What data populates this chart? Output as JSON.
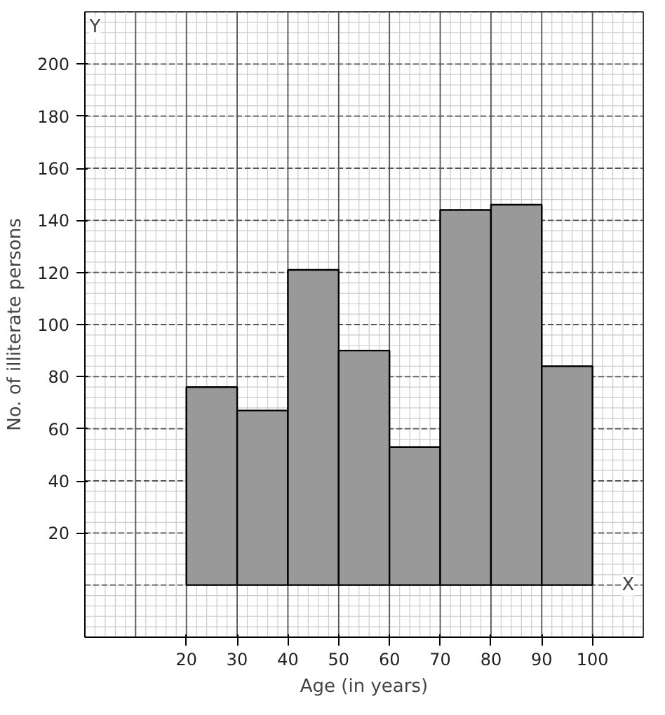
{
  "chart_data": {
    "type": "histogram",
    "xlabel": "Age (in years)",
    "ylabel": "No. of illiterate persons",
    "bins": [
      20,
      30,
      40,
      50,
      60,
      70,
      80,
      90,
      100
    ],
    "values": [
      76,
      67,
      121,
      90,
      53,
      144,
      146,
      84
    ],
    "color": "#999999",
    "xlim": [
      0,
      110
    ],
    "ylim": [
      -20,
      220
    ],
    "xticks": [
      20,
      30,
      40,
      50,
      60,
      70,
      80,
      90,
      100
    ],
    "yticks": [
      20,
      40,
      60,
      80,
      100,
      120,
      140,
      160,
      180,
      200
    ],
    "grid": true,
    "annotations": [
      "X",
      "Y"
    ]
  }
}
